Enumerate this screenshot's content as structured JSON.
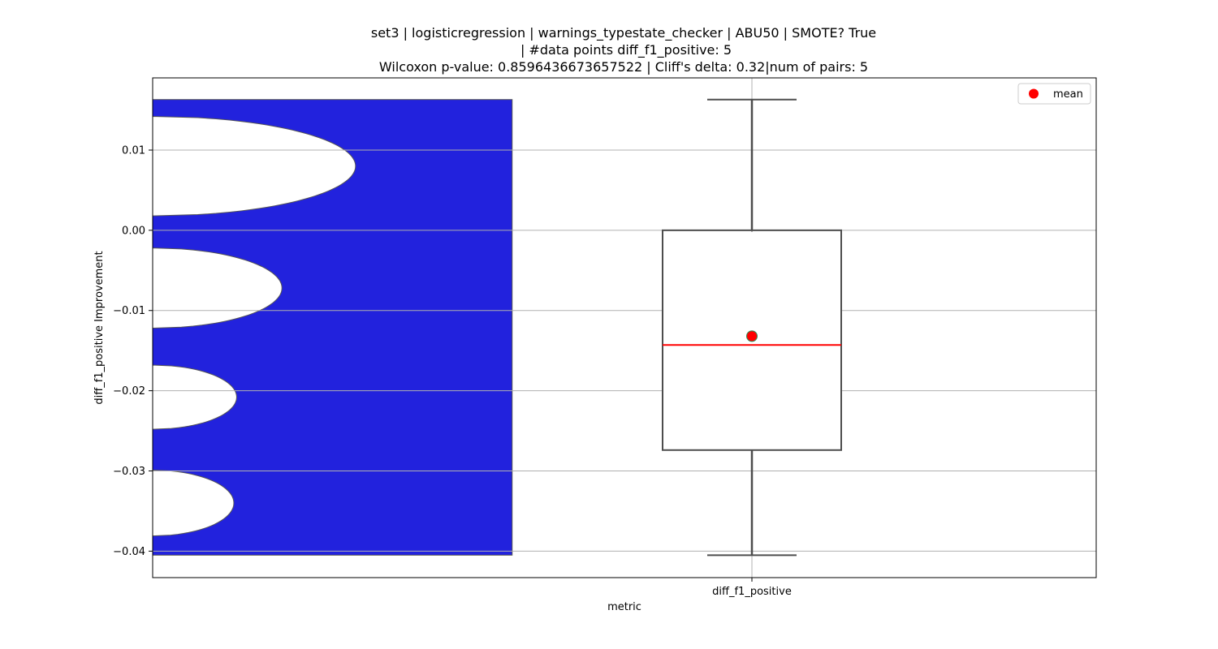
{
  "chart_data": {
    "type": "box",
    "title_lines": [
      "set3 | logisticregression | warnings_typestate_checker | ABU50 | SMOTE? True",
      "| #data points diff_f1_positive: 5",
      "Wilcoxon p-value: 0.8596436673657522 | Cliff's delta: 0.32|num of pairs: 5"
    ],
    "xlabel": "metric",
    "ylabel": "diff_f1_positive Improvement",
    "categories": [
      "diff_f1_positive"
    ],
    "ylim": [
      -0.0433,
      0.019
    ],
    "yticks": [
      0.01,
      0.0,
      -0.01,
      -0.02,
      -0.03,
      -0.04
    ],
    "ytick_labels": [
      "0.01",
      "0.00",
      "−0.01",
      "−0.02",
      "−0.03",
      "−0.04"
    ],
    "grid": true,
    "box": {
      "whisker_low": -0.0405,
      "q1": -0.0274,
      "median": -0.0143,
      "q3": 0.0,
      "whisker_high": 0.0163,
      "mean": -0.0132
    },
    "violin": {
      "fill_color": "#2222dd",
      "y_range": [
        -0.0405,
        0.0163
      ],
      "x_extent_fraction": 0.381,
      "dips": [
        {
          "center": 0.008,
          "half_height": 0.0062,
          "depth": 0.215
        },
        {
          "center": -0.0072,
          "half_height": 0.005,
          "depth": 0.137
        },
        {
          "center": -0.0208,
          "half_height": 0.004,
          "depth": 0.089
        },
        {
          "center": -0.034,
          "half_height": 0.0041,
          "depth": 0.086
        }
      ]
    },
    "colors": {
      "median": "#ff0000",
      "mean_marker": "#ff0000",
      "mean_edge": "#2e8b57",
      "box_edge": "#4d4d4d",
      "grid": "#b0b0b0"
    },
    "legend": {
      "entries": [
        {
          "label": "mean",
          "marker": "circle",
          "color": "#ff0000"
        }
      ],
      "placement": "upper right"
    }
  }
}
